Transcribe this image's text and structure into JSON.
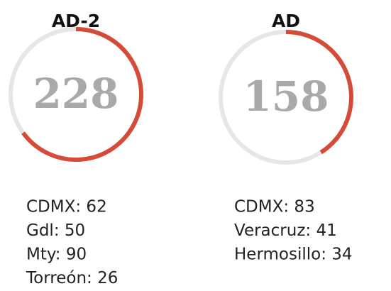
{
  "gauges": [
    {
      "title": "AD-2",
      "total": 228,
      "arc_fraction": 0.65,
      "items": [
        {
          "label": "CDMX: 62"
        },
        {
          "label": "Gdl: 50"
        },
        {
          "label": "Mty: 90"
        },
        {
          "label": "Torreón: 26"
        }
      ]
    },
    {
      "title": "AD",
      "total": 158,
      "arc_fraction": 0.41,
      "items": [
        {
          "label": "CDMX: 83"
        },
        {
          "label": "Veracruz: 41"
        },
        {
          "label": "Hermosillo: 34"
        }
      ]
    }
  ]
}
